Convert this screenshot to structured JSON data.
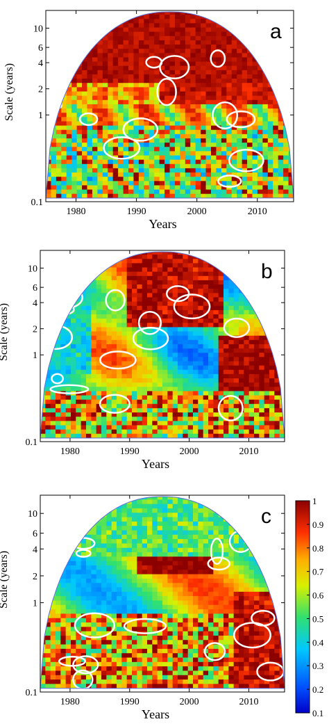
{
  "chart_data": [
    {
      "type": "heatmap",
      "panel_label": "a",
      "xlabel": "Years",
      "ylabel": "Scale (years)",
      "xlim": [
        1975,
        2016
      ],
      "ylim": [
        0.1,
        16
      ],
      "y_scale": "log",
      "x_ticks": [
        1980,
        1990,
        2000,
        2010
      ],
      "y_ticks": [
        {
          "value": 0.1,
          "label": "0.1"
        },
        {
          "value": 1,
          "label": "1"
        },
        {
          "value": 2,
          "label": "2"
        },
        {
          "value": 4,
          "label": "4"
        },
        {
          "value": 6,
          "label": "6"
        },
        {
          "value": 10,
          "label": "10"
        }
      ],
      "dominant_band_scale": [
        3,
        14
      ],
      "dominant_band_value": 0.95,
      "cone_of_influence": true
    },
    {
      "type": "heatmap",
      "panel_label": "b",
      "xlabel": "Years",
      "ylabel": "Scale (years)",
      "xlim": [
        1975,
        2016
      ],
      "ylim": [
        0.1,
        16
      ],
      "y_scale": "log",
      "x_ticks": [
        1980,
        1990,
        2000,
        2010
      ],
      "y_ticks": [
        {
          "value": 0.1,
          "label": "0.1"
        },
        {
          "value": 1,
          "label": "1"
        },
        {
          "value": 2,
          "label": "2"
        },
        {
          "value": 4,
          "label": "4"
        },
        {
          "value": 6,
          "label": "6"
        },
        {
          "value": 10,
          "label": "10"
        }
      ],
      "cone_of_influence": true
    },
    {
      "type": "heatmap",
      "panel_label": "c",
      "xlabel": "Years",
      "ylabel": "Scale (years)",
      "xlim": [
        1975,
        2016
      ],
      "ylim": [
        0.1,
        16
      ],
      "y_scale": "log",
      "x_ticks": [
        1980,
        1990,
        2000,
        2010
      ],
      "y_ticks": [
        {
          "value": 0.1,
          "label": "0.1"
        },
        {
          "value": 1,
          "label": "1"
        },
        {
          "value": 2,
          "label": "2"
        },
        {
          "value": 4,
          "label": "4"
        },
        {
          "value": 6,
          "label": "6"
        },
        {
          "value": 10,
          "label": "10"
        }
      ],
      "cone_of_influence": true,
      "colorbar": {
        "min": 0.1,
        "max": 1,
        "ticks": [
          {
            "value": 0.1,
            "label": "0.1"
          },
          {
            "value": 0.2,
            "label": "0.2"
          },
          {
            "value": 0.3,
            "label": "0.3"
          },
          {
            "value": 0.4,
            "label": "0.4"
          },
          {
            "value": 0.5,
            "label": "0.5"
          },
          {
            "value": 0.6,
            "label": "0.6"
          },
          {
            "value": 0.7,
            "label": "0.7"
          },
          {
            "value": 0.8,
            "label": "0.8"
          },
          {
            "value": 0.9,
            "label": "0.9"
          },
          {
            "value": 1,
            "label": "1"
          }
        ],
        "colormap": "jet"
      }
    }
  ]
}
